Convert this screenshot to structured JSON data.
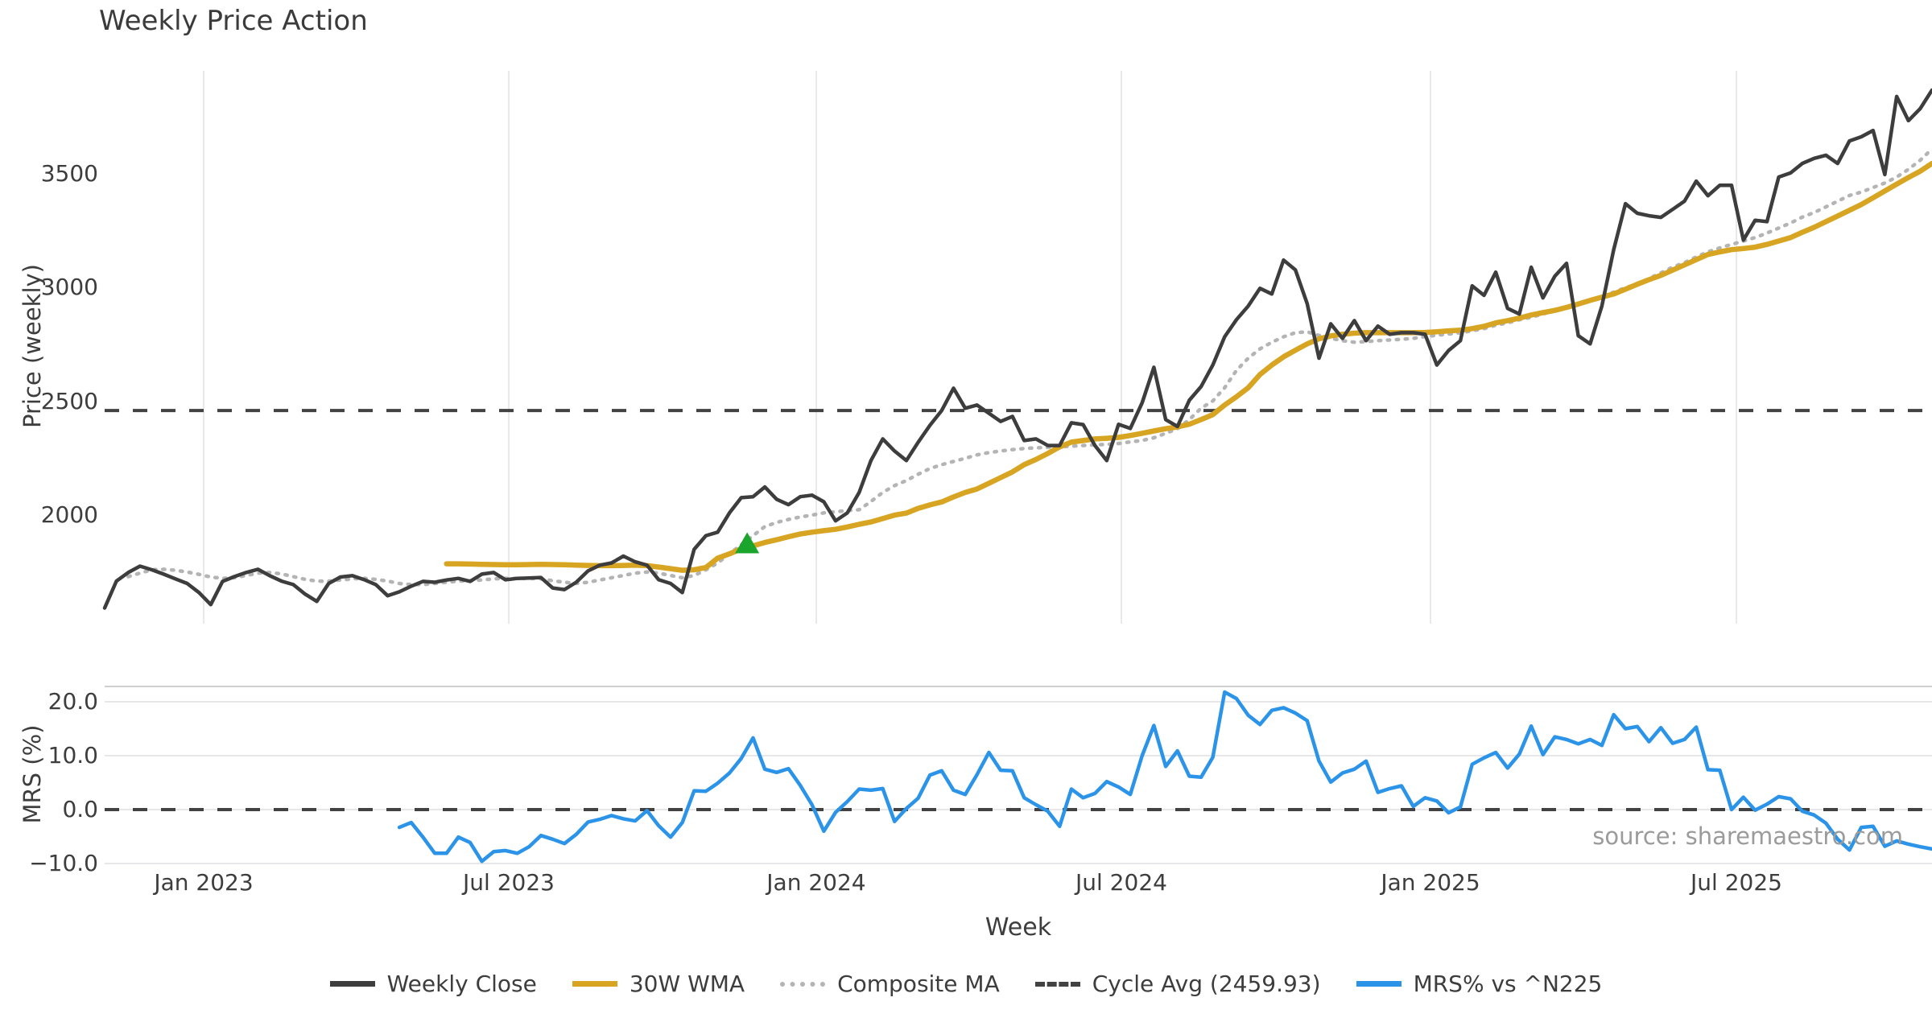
{
  "title": "Weekly Price Action",
  "source_note": "source: sharemaestro.com",
  "colors": {
    "close": "#3d3d3d",
    "wma": "#d7a521",
    "composite": "#b4b4b4",
    "reference_dash": "#424242",
    "mrs_blue": "#2b94e9",
    "signal_green": "#1ca52c",
    "grid_vertical": "#e9e9e9",
    "grid_horizontal": "#e7e7ea",
    "spine": "#cfcfcf",
    "text": "#3d3d3d",
    "muted_text": "#9b9b9b"
  },
  "chart_data": {
    "type": "line",
    "x_label": "Week",
    "week_range": [
      0,
      155
    ],
    "x_ticks": [
      {
        "week": 8.4,
        "label": "Jan 2023"
      },
      {
        "week": 34.28,
        "label": "Jul 2023"
      },
      {
        "week": 60.36,
        "label": "Jan 2024"
      },
      {
        "week": 86.24,
        "label": "Jul 2024"
      },
      {
        "week": 112.46,
        "label": "Jan 2025"
      },
      {
        "week": 138.41,
        "label": "Jul 2025"
      }
    ],
    "panels": [
      {
        "id": "price",
        "y_label": "Price (weekly)",
        "ylim": [
          1523,
          3953
        ],
        "y_ticks": [
          {
            "value": 3500,
            "label": "3500"
          },
          {
            "value": 3000,
            "label": "3000"
          },
          {
            "value": 2500,
            "label": "2500"
          },
          {
            "value": 2000,
            "label": "2000"
          }
        ],
        "grid": "vertical",
        "reference_line": {
          "value": 2459.93,
          "label": "Cycle Avg (2459.93)",
          "style": "dashed",
          "color": "#424242"
        },
        "signal_marker": {
          "shape": "triangle-up",
          "color": "#1ca52c",
          "week": 54.5,
          "value": 1875
        },
        "series": [
          {
            "name": "Composite MA",
            "color": "#b4b4b4",
            "style": "dotted",
            "width": 4.5,
            "start_week": 2,
            "values": [
              1730,
              1745,
              1760,
              1762,
              1758,
              1750,
              1740,
              1728,
              1722,
              1725,
              1735,
              1745,
              1748,
              1742,
              1730,
              1718,
              1710,
              1710,
              1715,
              1720,
              1722,
              1718,
              1710,
              1700,
              1695,
              1695,
              1700,
              1705,
              1710,
              1712,
              1715,
              1720,
              1722,
              1722,
              1722,
              1720,
              1712,
              1705,
              1700,
              1705,
              1715,
              1725,
              1735,
              1745,
              1750,
              1745,
              1735,
              1725,
              1735,
              1760,
              1790,
              1830,
              1870,
              1910,
              1950,
              1968,
              1981,
              1992,
              2000,
              2010,
              2015,
              2020,
              2024,
              2060,
              2100,
              2130,
              2152,
              2180,
              2205,
              2222,
              2236,
              2250,
              2265,
              2275,
              2282,
              2288,
              2293,
              2296,
              2298,
              2300,
              2303,
              2306,
              2309,
              2311,
              2315,
              2322,
              2328,
              2340,
              2360,
              2380,
              2420,
              2470,
              2502,
              2560,
              2636,
              2690,
              2731,
              2760,
              2784,
              2802,
              2806,
              2790,
              2777,
              2767,
              2760,
              2763,
              2767,
              2770,
              2773,
              2777,
              2785,
              2791,
              2796,
              2802,
              2810,
              2820,
              2835,
              2845,
              2859,
              2870,
              2884,
              2900,
              2915,
              2930,
              2944,
              2960,
              2980,
              3000,
              3015,
              3040,
              3065,
              3090,
              3110,
              3135,
              3157,
              3175,
              3190,
              3205,
              3220,
              3240,
              3262,
              3284,
              3310,
              3330,
              3355,
              3380,
              3405,
              3420,
              3440,
              3460,
              3486,
              3520,
              3560,
              3610
            ]
          },
          {
            "name": "30W WMA",
            "color": "#d7a521",
            "style": "solid",
            "width": 6.5,
            "start_week": 29,
            "values": [
              1786,
              1786,
              1785,
              1784,
              1783,
              1782,
              1782,
              1783,
              1784,
              1783,
              1782,
              1780,
              1779,
              1778,
              1778,
              1779,
              1780,
              1778,
              1772,
              1765,
              1758,
              1760,
              1770,
              1811,
              1830,
              1852,
              1865,
              1880,
              1892,
              1905,
              1917,
              1925,
              1932,
              1938,
              1948,
              1960,
              1970,
              1985,
              2000,
              2009,
              2030,
              2045,
              2058,
              2080,
              2100,
              2115,
              2140,
              2165,
              2190,
              2222,
              2245,
              2271,
              2300,
              2321,
              2328,
              2335,
              2338,
              2342,
              2350,
              2360,
              2370,
              2380,
              2388,
              2400,
              2420,
              2442,
              2484,
              2520,
              2560,
              2618,
              2660,
              2696,
              2725,
              2753,
              2775,
              2788,
              2795,
              2800,
              2802,
              2802,
              2802,
              2802,
              2802,
              2803,
              2806,
              2810,
              2813,
              2820,
              2830,
              2845,
              2855,
              2866,
              2880,
              2890,
              2900,
              2913,
              2928,
              2944,
              2958,
              2972,
              2993,
              3015,
              3035,
              3054,
              3077,
              3100,
              3123,
              3146,
              3157,
              3167,
              3172,
              3178,
              3190,
              3205,
              3220,
              3243,
              3265,
              3290,
              3315,
              3340,
              3365,
              3395,
              3425,
              3455,
              3484,
              3512,
              3546
            ]
          },
          {
            "name": "Weekly Close",
            "color": "#3d3d3d",
            "style": "solid",
            "width": 4.5,
            "start_week": 0,
            "values": [
              1592,
              1710,
              1748,
              1776,
              1760,
              1741,
              1720,
              1700,
              1660,
              1607,
              1709,
              1730,
              1748,
              1762,
              1734,
              1710,
              1695,
              1653,
              1621,
              1700,
              1728,
              1734,
              1717,
              1695,
              1646,
              1663,
              1688,
              1709,
              1705,
              1715,
              1722,
              1709,
              1741,
              1748,
              1716,
              1722,
              1724,
              1726,
              1680,
              1673,
              1705,
              1755,
              1780,
              1790,
              1820,
              1795,
              1780,
              1716,
              1700,
              1660,
              1850,
              1910,
              1925,
              2010,
              2077,
              2081,
              2124,
              2070,
              2046,
              2081,
              2088,
              2059,
              1975,
              2010,
              2100,
              2240,
              2335,
              2282,
              2240,
              2320,
              2395,
              2460,
              2558,
              2470,
              2484,
              2448,
              2412,
              2434,
              2328,
              2335,
              2306,
              2306,
              2406,
              2398,
              2306,
              2240,
              2399,
              2381,
              2494,
              2650,
              2420,
              2390,
              2505,
              2565,
              2660,
              2784,
              2859,
              2919,
              2997,
              2972,
              3121,
              3078,
              2930,
              2690,
              2841,
              2777,
              2855,
              2767,
              2831,
              2795,
              2802,
              2802,
              2795,
              2660,
              2724,
              2767,
              3008,
              2966,
              3068,
              2909,
              2884,
              3090,
              2955,
              3050,
              3107,
              2789,
              2753,
              2919,
              3167,
              3369,
              3327,
              3316,
              3309,
              3344,
              3380,
              3468,
              3404,
              3450,
              3450,
              3209,
              3296,
              3290,
              3486,
              3504,
              3546,
              3568,
              3582,
              3546,
              3645,
              3663,
              3691,
              3497,
              3840,
              3734,
              3787,
              3868
            ]
          }
        ]
      },
      {
        "id": "mrs",
        "y_label": "MRS (%)",
        "ylim": [
          -10.15,
          22.84
        ],
        "y_ticks": [
          {
            "value": 20,
            "label": "20.0"
          },
          {
            "value": 10,
            "label": "10.0"
          },
          {
            "value": 0,
            "label": "0.0"
          },
          {
            "value": -10,
            "label": "−10.0"
          }
        ],
        "grid": "horizontal",
        "reference_line": {
          "value": 0,
          "label": null,
          "style": "dashed",
          "color": "#424242"
        },
        "series": [
          {
            "name": "MRS% vs ^N225",
            "color": "#2b94e9",
            "style": "solid",
            "width": 4.5,
            "start_week": 25,
            "values": [
              -3.3,
              -2.4,
              -5.1,
              -8.1,
              -8.1,
              -5.1,
              -6.1,
              -9.6,
              -7.8,
              -7.6,
              -8.1,
              -6.9,
              -4.8,
              -5.5,
              -6.3,
              -4.6,
              -2.3,
              -1.8,
              -1.1,
              -1.7,
              -2.1,
              -0.2,
              -3.0,
              -5.1,
              -2.4,
              3.5,
              3.4,
              4.9,
              6.8,
              9.5,
              13.3,
              7.5,
              6.9,
              7.6,
              4.5,
              0.9,
              -4.0,
              -0.5,
              1.5,
              3.8,
              3.6,
              3.9,
              -2.2,
              0.2,
              2.1,
              6.4,
              7.2,
              3.6,
              2.8,
              6.5,
              10.6,
              7.3,
              7.2,
              2.2,
              0.9,
              -0.3,
              -3.1,
              3.8,
              2.2,
              3.0,
              5.2,
              4.2,
              2.8,
              10.0,
              15.6,
              8.0,
              10.9,
              6.2,
              6.0,
              9.7,
              21.8,
              20.6,
              17.5,
              15.8,
              18.4,
              18.9,
              17.9,
              16.5,
              9.0,
              5.1,
              6.8,
              7.5,
              9.0,
              3.2,
              3.9,
              4.4,
              0.6,
              2.2,
              1.6,
              -0.6,
              0.5,
              8.4,
              9.6,
              10.6,
              7.7,
              10.3,
              15.5,
              10.2,
              13.5,
              13.0,
              12.2,
              13.0,
              11.9,
              17.6,
              15.0,
              15.4,
              12.6,
              15.2,
              12.3,
              13.0,
              15.3,
              7.4,
              7.3,
              0.0,
              2.3,
              -0.1,
              1.0,
              2.4,
              2.0,
              -0.3,
              -1.0,
              -2.5,
              -5.5,
              -7.5,
              -3.3,
              -3.1,
              -6.8,
              -5.8,
              -6.4,
              -6.9,
              -7.3
            ]
          }
        ]
      }
    ]
  },
  "legend": {
    "items": [
      {
        "label": "Weekly Close",
        "color": "#3d3d3d",
        "style": "solid"
      },
      {
        "label": "30W WMA",
        "color": "#d7a521",
        "style": "solid"
      },
      {
        "label": "Composite MA",
        "color": "#b4b4b4",
        "style": "dotted"
      },
      {
        "label": "Cycle Avg (2459.93)",
        "color": "#424242",
        "style": "dashed"
      },
      {
        "label": "MRS% vs ^N225",
        "color": "#2b94e9",
        "style": "solid"
      }
    ]
  }
}
